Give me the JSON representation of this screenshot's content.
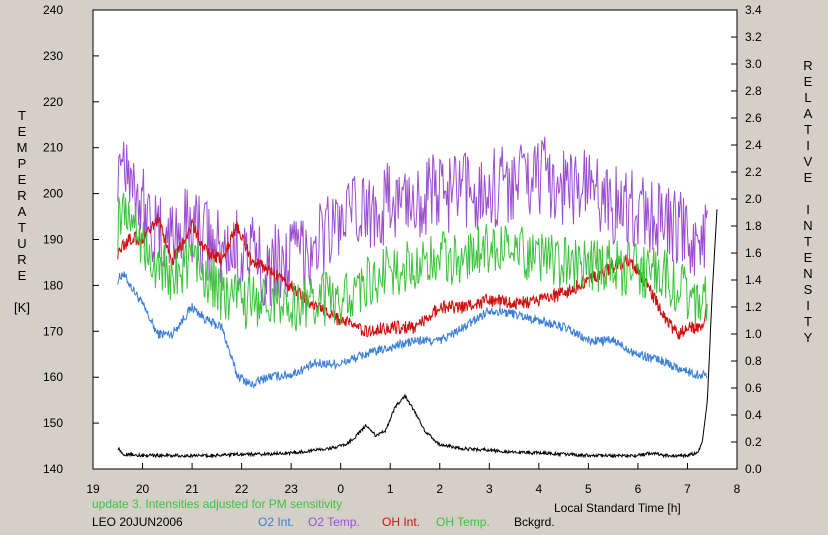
{
  "chart_data": {
    "type": "line",
    "left_axis": {
      "label_letters": [
        "T",
        "E",
        "M",
        "P",
        "E",
        "R",
        "A",
        "T",
        "U",
        "R",
        "E"
      ],
      "unit": "[K]",
      "ylim": [
        140,
        240
      ],
      "ticks": [
        "140",
        "150",
        "160",
        "170",
        "180",
        "190",
        "200",
        "210",
        "220",
        "230",
        "240"
      ]
    },
    "right_axis": {
      "label_letters": [
        "R",
        "E",
        "L",
        "A",
        "T",
        "I",
        "V",
        "E",
        " ",
        "I",
        "N",
        "T",
        "E",
        "N",
        "S",
        "I",
        "T",
        "Y"
      ],
      "ylim": [
        0.0,
        3.4
      ],
      "ticks": [
        "0.0",
        "0.2",
        "0.4",
        "0.6",
        "0.8",
        "1.0",
        "1.2",
        "1.4",
        "1.6",
        "1.8",
        "2.0",
        "2.2",
        "2.4",
        "2.6",
        "2.8",
        "3.0",
        "3.2",
        "3.4"
      ]
    },
    "x_axis": {
      "label": "Local Standard Time [h]",
      "ticks": [
        "19",
        "20",
        "21",
        "22",
        "23",
        "0",
        "1",
        "2",
        "3",
        "4",
        "5",
        "6",
        "7",
        "8"
      ]
    },
    "grid": false,
    "annotation": "update 3. Intensities adjusted for PM sensitivity",
    "station_label": "LEO 20JUN2006",
    "series": [
      {
        "name": "O2 Int.",
        "color": "#3a7fd5",
        "axis": "right",
        "x": [
          19.5,
          19.6,
          20.0,
          20.3,
          20.6,
          21.0,
          21.3,
          21.6,
          21.9,
          22.2,
          22.5,
          23.0,
          23.5,
          24.0,
          24.5,
          25.0,
          25.5,
          26.0,
          26.5,
          27.0,
          27.5,
          28.0,
          28.5,
          29.0,
          29.5,
          30.0,
          30.5,
          30.8,
          31.0,
          31.2,
          31.4
        ],
        "y": [
          1.4,
          1.45,
          1.22,
          1.0,
          1.0,
          1.2,
          1.1,
          1.05,
          0.7,
          0.62,
          0.68,
          0.7,
          0.78,
          0.78,
          0.85,
          0.9,
          0.95,
          0.95,
          1.05,
          1.18,
          1.15,
          1.1,
          1.05,
          0.95,
          0.95,
          0.85,
          0.8,
          0.75,
          0.72,
          0.7,
          0.7
        ]
      },
      {
        "name": "O2 Temp.",
        "color": "#9b4fd0",
        "axis": "left",
        "x": [
          19.5,
          19.6,
          20.0,
          20.3,
          20.6,
          21.0,
          21.3,
          21.6,
          22.0,
          22.5,
          23.0,
          23.5,
          24.0,
          24.5,
          25.0,
          25.5,
          26.0,
          26.5,
          27.0,
          27.5,
          28.0,
          28.5,
          29.0,
          29.5,
          30.0,
          30.5,
          30.8,
          31.0,
          31.2,
          31.4
        ],
        "y": [
          207,
          210,
          198,
          190,
          191,
          194,
          190,
          187,
          188,
          184,
          186,
          190,
          194,
          196,
          198,
          199,
          200,
          200,
          201,
          203,
          204,
          202,
          201,
          198,
          196,
          194,
          192,
          190,
          190,
          190
        ]
      },
      {
        "name": "OH Int.",
        "color": "#d01010",
        "axis": "right",
        "x": [
          19.5,
          19.6,
          19.8,
          20.0,
          20.3,
          20.6,
          21.0,
          21.3,
          21.6,
          21.9,
          22.2,
          22.5,
          23.0,
          23.5,
          24.0,
          24.5,
          25.0,
          25.5,
          26.0,
          26.5,
          27.0,
          27.5,
          28.0,
          28.5,
          29.0,
          29.5,
          29.8,
          30.2,
          30.5,
          30.8,
          31.0,
          31.3,
          31.4
        ],
        "y": [
          1.6,
          1.65,
          1.72,
          1.68,
          1.85,
          1.55,
          1.8,
          1.6,
          1.55,
          1.8,
          1.55,
          1.48,
          1.35,
          1.2,
          1.1,
          1.02,
          1.05,
          1.05,
          1.2,
          1.2,
          1.25,
          1.22,
          1.25,
          1.3,
          1.4,
          1.5,
          1.55,
          1.35,
          1.15,
          1.0,
          1.05,
          1.05,
          1.2
        ]
      },
      {
        "name": "OH Temp.",
        "color": "#3ec23e",
        "axis": "left",
        "x": [
          19.5,
          19.6,
          20.0,
          20.3,
          20.6,
          21.0,
          21.3,
          21.6,
          22.0,
          22.5,
          23.0,
          23.5,
          24.0,
          24.5,
          25.0,
          25.5,
          26.0,
          26.5,
          27.0,
          27.5,
          28.0,
          28.5,
          29.0,
          29.5,
          30.0,
          30.5,
          30.8,
          31.0,
          31.2,
          31.4
        ],
        "y": [
          193,
          198,
          190,
          184,
          182,
          186,
          182,
          178,
          176,
          177,
          175,
          177,
          177,
          180,
          183,
          184,
          186,
          186,
          188,
          188,
          186,
          185,
          184,
          184,
          183,
          182,
          180,
          178,
          176,
          177
        ]
      },
      {
        "name": "Bckgrd.",
        "color": "#000000",
        "axis": "right",
        "x": [
          19.5,
          19.6,
          20.0,
          20.5,
          21.0,
          21.5,
          22.0,
          22.5,
          23.0,
          23.5,
          23.9,
          24.1,
          24.3,
          24.5,
          24.7,
          24.9,
          25.1,
          25.3,
          25.5,
          25.7,
          26.0,
          26.5,
          27.0,
          27.5,
          28.0,
          28.5,
          29.0,
          29.5,
          30.0,
          30.3,
          30.5,
          30.8,
          31.0,
          31.2,
          31.3,
          31.4,
          31.5,
          31.6
        ],
        "y": [
          0.16,
          0.11,
          0.1,
          0.1,
          0.1,
          0.1,
          0.11,
          0.11,
          0.12,
          0.14,
          0.16,
          0.18,
          0.24,
          0.32,
          0.25,
          0.28,
          0.46,
          0.54,
          0.42,
          0.28,
          0.18,
          0.15,
          0.14,
          0.12,
          0.12,
          0.11,
          0.1,
          0.1,
          0.1,
          0.12,
          0.1,
          0.1,
          0.1,
          0.12,
          0.2,
          0.5,
          1.3,
          1.95
        ]
      }
    ]
  }
}
